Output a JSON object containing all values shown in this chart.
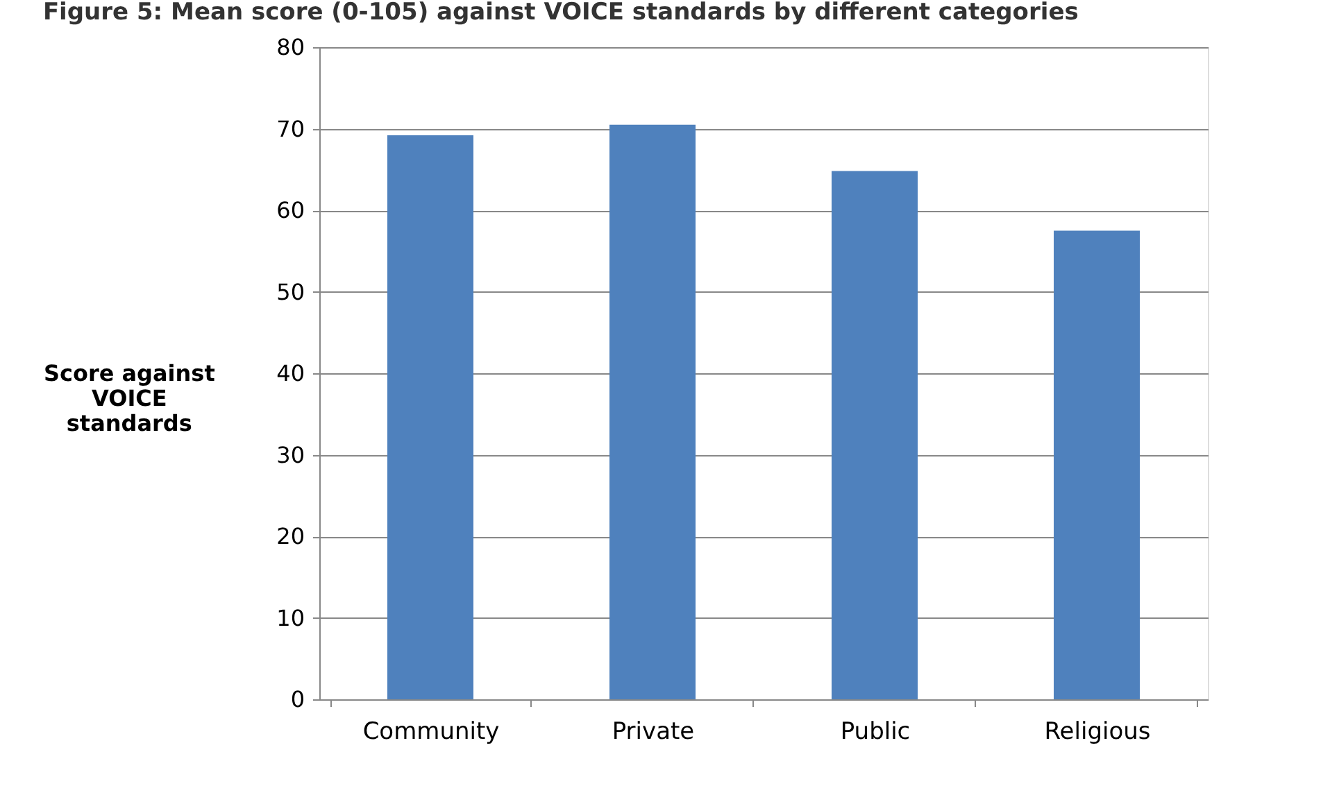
{
  "chart_data": {
    "type": "bar",
    "title": "Figure 5: Mean score (0-105) against VOICE standards by different categories",
    "categories": [
      "Community",
      "Private",
      "Public",
      "Religious"
    ],
    "values": [
      69.2,
      70.5,
      64.8,
      57.5
    ],
    "color": "#4f81bd",
    "ylabel": "Score against VOICE standards",
    "ylim": [
      0,
      80
    ],
    "yticks": [
      0,
      10,
      20,
      30,
      40,
      50,
      60,
      70,
      80
    ],
    "grid": "y"
  }
}
